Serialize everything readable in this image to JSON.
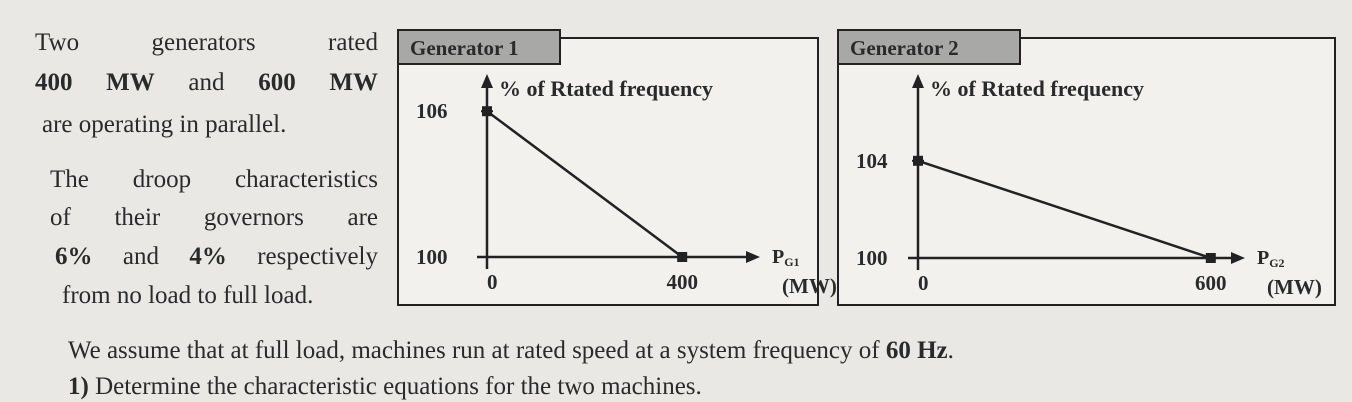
{
  "paragraphs": [
    [
      [
        {
          "text": "Two generators rated"
        }
      ],
      [
        {
          "text": "400 MW",
          "bold": true
        },
        {
          "text": " and "
        },
        {
          "text": "600 MW",
          "bold": true
        }
      ],
      [
        {
          "text": "are operating in parallel."
        }
      ]
    ],
    [
      [
        {
          "text": "The droop characteristics"
        }
      ],
      [
        {
          "text": "of their governors are"
        }
      ],
      [
        {
          "text": "6%",
          "bold": true
        },
        {
          "text": " and "
        },
        {
          "text": "4%",
          "bold": true
        },
        {
          "text": " respectively"
        }
      ],
      [
        {
          "text": "from no load to full load."
        }
      ]
    ]
  ],
  "figures": [
    {
      "title": "Generator 1",
      "y_label": "% of Rtated frequency",
      "y_ticks": [
        100,
        106
      ],
      "x_ticks": [
        0,
        400
      ],
      "x_label": "P",
      "x_label_sub": "G1",
      "x_unit": "(MW)",
      "line": {
        "x": [
          0,
          400
        ],
        "y": [
          106,
          100
        ]
      }
    },
    {
      "title": "Generator 2",
      "y_label": "% of Rtated frequency",
      "y_ticks": [
        100,
        104
      ],
      "x_ticks": [
        0,
        600
      ],
      "x_label": "P",
      "x_label_sub": "G2",
      "x_unit": "(MW)",
      "line": {
        "x": [
          0,
          600
        ],
        "y": [
          104,
          100
        ]
      }
    }
  ],
  "footer": [
    [
      {
        "text": "We assume that at full load, machines run at rated speed at a system frequency of "
      },
      {
        "text": "60 Hz",
        "bold": true
      },
      {
        "text": "."
      }
    ],
    [
      {
        "text": "1)",
        "bold": true
      },
      {
        "text": " Determine the characteristic equations for the two machines."
      }
    ]
  ]
}
